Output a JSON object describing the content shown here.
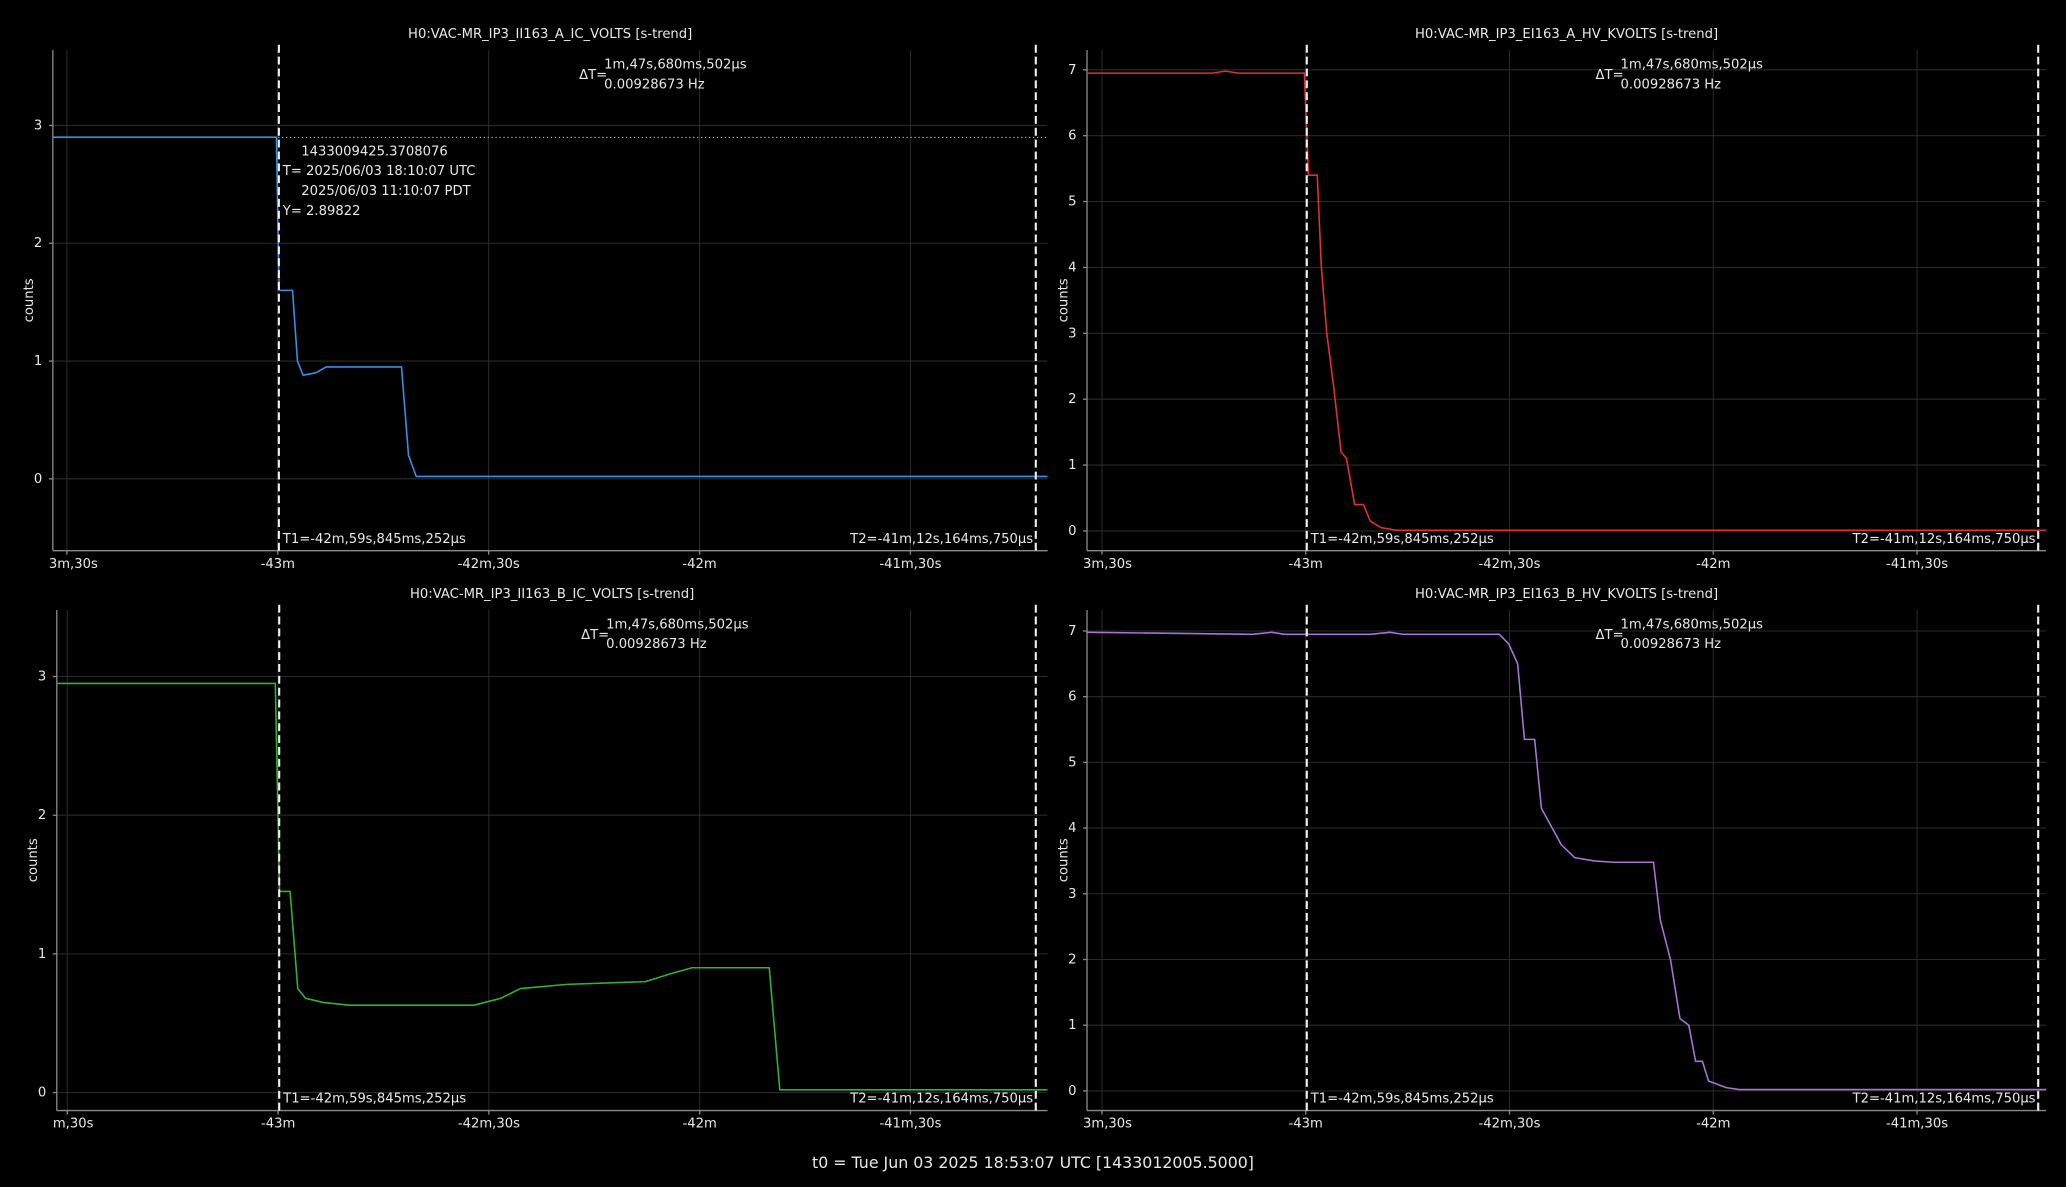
{
  "chart_data": [
    {
      "type": "line",
      "title": "H0:VAC-MR_IP3_II163_A_IC_VOLTS [s-trend]",
      "ylabel": "counts",
      "color": "#3a8ee6",
      "grid": true,
      "xlim": [
        -2612,
        -2470.5
      ],
      "ylim": [
        -0.61,
        3.64
      ],
      "xticks": [
        {
          "value": -2610,
          "label": "3m,30s"
        },
        {
          "value": -2580,
          "label": "-43m"
        },
        {
          "value": -2550,
          "label": "-42m,30s"
        },
        {
          "value": -2520,
          "label": "-42m"
        },
        {
          "value": -2490,
          "label": "-41m,30s"
        }
      ],
      "yticks": [
        0,
        1,
        2,
        3
      ],
      "x": [
        -2612,
        -2580.2,
        -2579.8,
        -2577.9,
        -2577.2,
        -2576.4,
        -2574.6,
        -2573.1,
        -2562.4,
        -2561.4,
        -2560.3,
        -2470.5
      ],
      "values": [
        2.9,
        2.9,
        1.6,
        1.6,
        1.0,
        0.88,
        0.9,
        0.95,
        0.95,
        0.2,
        0.02,
        0.02
      ],
      "cursors": [
        {
          "value": -2579.845,
          "label": "T1=-42m,59s,845ms,252µs"
        },
        {
          "value": -2472.164,
          "label": "T2=-41m,12s,164ms,750µs"
        }
      ],
      "delta": {
        "label": "ΔT=",
        "time": "1m,47s,680ms,502µs",
        "frequency": "0.00928673 Hz"
      },
      "crosshair": {
        "value": 2.89822,
        "label": "Y= 2.89822"
      },
      "annotations": [
        "1433009425.3708076",
        "T= 2025/06/03 18:10:07 UTC",
        "2025/06/03 11:10:07 PDT"
      ]
    },
    {
      "type": "line",
      "title": "H0:VAC-MR_IP3_EI163_A_HV_KVOLTS [s-trend]",
      "ylabel": "counts",
      "color": "#e0312f",
      "grid": true,
      "xlim": [
        -2612.2,
        -2471
      ],
      "ylim": [
        -0.3,
        7.3
      ],
      "xticks": [
        {
          "value": -2610,
          "label": "3m,30s"
        },
        {
          "value": -2580,
          "label": "-43m"
        },
        {
          "value": -2550,
          "label": "-42m,30s"
        },
        {
          "value": -2520,
          "label": "-42m"
        },
        {
          "value": -2490,
          "label": "-41m,30s"
        }
      ],
      "yticks": [
        0,
        1,
        2,
        3,
        4,
        5,
        6,
        7
      ],
      "x": [
        -2612.2,
        -2593.8,
        -2591.8,
        -2589.9,
        -2580.2,
        -2579.6,
        -2578.3,
        -2577.7,
        -2576.9,
        -2575.9,
        -2574.8,
        -2574.0,
        -2572.8,
        -2571.5,
        -2570.5,
        -2568.9,
        -2566.6,
        -2471.0
      ],
      "values": [
        6.95,
        6.95,
        6.98,
        6.95,
        6.95,
        5.4,
        5.4,
        4,
        3,
        2.2,
        1.2,
        1.1,
        0.4,
        0.4,
        0.15,
        0.05,
        0.01,
        0.01
      ],
      "cursors": [
        {
          "value": -2579.845,
          "label": "T1=-42m,59s,845ms,252µs"
        },
        {
          "value": -2472.164,
          "label": "T2=-41m,12s,164ms,750µs"
        }
      ],
      "delta": {
        "label": "ΔT=",
        "time": "1m,47s,680ms,502µs",
        "frequency": "0.00928673 Hz"
      }
    },
    {
      "type": "line",
      "title": "H0:VAC-MR_IP3_II163_B_IC_VOLTS [s-trend]",
      "ylabel": "counts",
      "color": "#35b035",
      "grid": true,
      "xlim": [
        -2611.5,
        -2470.5
      ],
      "ylim": [
        -0.13,
        3.48
      ],
      "xticks": [
        {
          "value": -2610,
          "label": "m,30s"
        },
        {
          "value": -2580,
          "label": "-43m"
        },
        {
          "value": -2550,
          "label": "-42m,30s"
        },
        {
          "value": -2520,
          "label": "-42m"
        },
        {
          "value": -2490,
          "label": "-41m,30s"
        }
      ],
      "yticks": [
        0,
        1,
        2,
        3
      ],
      "x": [
        -2611.5,
        -2580.4,
        -2579.8,
        -2578.3,
        -2577.2,
        -2576.1,
        -2573.6,
        -2569.9,
        -2552.1,
        -2548.3,
        -2545.5,
        -2538.9,
        -2527.7,
        -2523.9,
        -2521.1,
        -2510.1,
        -2508.6,
        -2495.8,
        -2470.5
      ],
      "values": [
        2.95,
        2.95,
        1.45,
        1.45,
        0.75,
        0.68,
        0.65,
        0.63,
        0.63,
        0.68,
        0.75,
        0.78,
        0.8,
        0.86,
        0.9,
        0.9,
        0.02,
        0.02,
        0.02
      ],
      "cursors": [
        {
          "value": -2579.845,
          "label": "T1=-42m,59s,845ms,252µs"
        },
        {
          "value": -2472.164,
          "label": "T2=-41m,12s,164ms,750µs"
        }
      ],
      "delta": {
        "label": "ΔT=",
        "time": "1m,47s,680ms,502µs",
        "frequency": "0.00928673 Hz"
      }
    },
    {
      "type": "line",
      "title": "H0:VAC-MR_IP3_EI163_B_HV_KVOLTS [s-trend]",
      "ylabel": "counts",
      "color": "#a673d6",
      "grid": true,
      "xlim": [
        -2612.2,
        -2471
      ],
      "ylim": [
        -0.3,
        7.32
      ],
      "xticks": [
        {
          "value": -2610,
          "label": "3m,30s"
        },
        {
          "value": -2580,
          "label": "-43m"
        },
        {
          "value": -2550,
          "label": "-42m,30s"
        },
        {
          "value": -2520,
          "label": "-42m"
        },
        {
          "value": -2490,
          "label": "-41m,30s"
        }
      ],
      "yticks": [
        0,
        1,
        2,
        3,
        4,
        5,
        6,
        7
      ],
      "x": [
        -2612.2,
        -2587.9,
        -2585.0,
        -2583.1,
        -2570.5,
        -2567.6,
        -2565.7,
        -2551.5,
        -2550.1,
        -2548.8,
        -2547.8,
        -2546.3,
        -2545.3,
        -2543.7,
        -2542.4,
        -2540.4,
        -2537.5,
        -2534.6,
        -2528.8,
        -2527.8,
        -2526.3,
        -2524.9,
        -2523.6,
        -2522.6,
        -2521.6,
        -2520.7,
        -2518.1,
        -2516.2,
        -2471.0
      ],
      "values": [
        6.98,
        6.95,
        6.98,
        6.95,
        6.95,
        6.98,
        6.95,
        6.95,
        6.8,
        6.5,
        5.35,
        5.35,
        4.3,
        4.0,
        3.75,
        3.55,
        3.5,
        3.48,
        3.48,
        2.6,
        2.0,
        1.1,
        1.0,
        0.45,
        0.45,
        0.15,
        0.05,
        0.02,
        0.02
      ],
      "cursors": [
        {
          "value": -2579.845,
          "label": "T1=-42m,59s,845ms,252µs"
        },
        {
          "value": -2472.164,
          "label": "T2=-41m,12s,164ms,750µs"
        }
      ],
      "delta": {
        "label": "ΔT=",
        "time": "1m,47s,680ms,502µs",
        "frequency": "0.00928673 Hz"
      }
    }
  ],
  "footer": "t0 = Tue Jun 03 2025 18:53:07 UTC [1433012005.5000]"
}
